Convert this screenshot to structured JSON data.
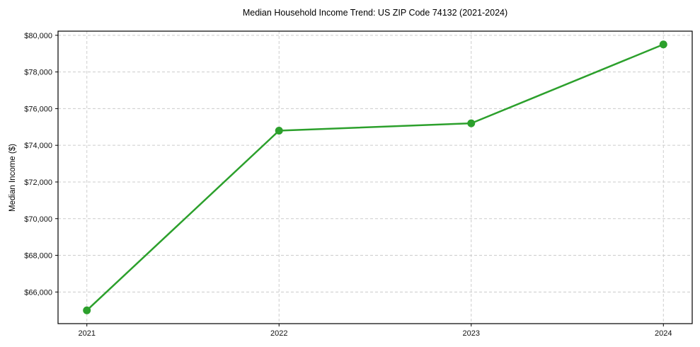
{
  "chart_data": {
    "type": "line",
    "title": "Median Household Income Trend: US ZIP Code 74132 (2021-2024)",
    "xlabel": "",
    "ylabel": "Median Income ($)",
    "x": [
      2021,
      2022,
      2023,
      2024
    ],
    "x_tick_labels": [
      "2021",
      "2022",
      "2023",
      "2024"
    ],
    "series": [
      {
        "name": "Median Household Income",
        "values": [
          65000,
          74800,
          75200,
          79500
        ]
      }
    ],
    "y_ticks": [
      66000,
      68000,
      70000,
      72000,
      74000,
      76000,
      78000,
      80000
    ],
    "y_tick_labels": [
      "$66,000",
      "$68,000",
      "$70,000",
      "$72,000",
      "$74,000",
      "$76,000",
      "$78,000",
      "$80,000"
    ],
    "xlim": [
      2020.85,
      2024.15
    ],
    "ylim": [
      64275,
      80225
    ],
    "grid": true,
    "legend": "none",
    "line_color": "#2ca02c",
    "marker": "circle",
    "marker_radius": 5.5,
    "background_color": "#ffffff",
    "grid_color": "#cccccc",
    "spine_color": "#000000"
  }
}
